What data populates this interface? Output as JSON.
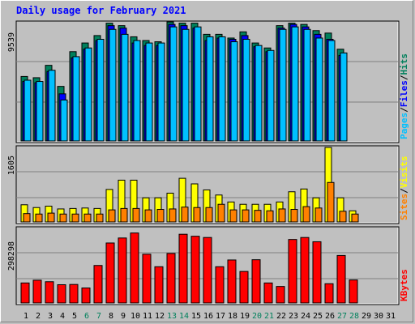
{
  "chart_data": {
    "type": "bar",
    "title": "Daily usage for February 2021",
    "days": [
      "1",
      "2",
      "3",
      "4",
      "5",
      "6",
      "7",
      "8",
      "9",
      "10",
      "11",
      "12",
      "13",
      "14",
      "15",
      "16",
      "17",
      "18",
      "19",
      "20",
      "21",
      "22",
      "23",
      "24",
      "25",
      "26",
      "27",
      "28",
      "29",
      "30",
      "31"
    ],
    "weekend_days": [
      "6",
      "7",
      "13",
      "14",
      "20",
      "21",
      "27",
      "28"
    ],
    "colors": {
      "hits": "#00805c",
      "files": "#0000ff",
      "pages": "#00c0ff",
      "visits": "#ffff00",
      "sites": "#ff8000",
      "kbytes": "#ff0000",
      "weekday_label": "#000000",
      "weekend_label": "#00805c"
    },
    "panels": [
      {
        "id": "hits-files-pages",
        "ymax_label": "9539",
        "ymax": 9539,
        "legend": [
          "Pages",
          "Files",
          "Hits"
        ],
        "legend_colors": [
          "#00c0ff",
          "#0000ff",
          "#00805c"
        ],
        "series": [
          {
            "name": "Hits",
            "values": [
              5200,
              5100,
              6100,
              4400,
              7200,
              7900,
              8500,
              9500,
              9300,
              8400,
              8100,
              8000,
              9600,
              9500,
              9500,
              8600,
              8600,
              8300,
              8800,
              7900,
              7500,
              9300,
              9500,
              9400,
              8900,
              8700,
              7400,
              null,
              null,
              null,
              null
            ]
          },
          {
            "name": "Files",
            "values": [
              4800,
              4700,
              5600,
              3800,
              6700,
              7400,
              8100,
              9300,
              9100,
              7900,
              7700,
              7700,
              9400,
              9300,
              9100,
              8100,
              8300,
              8200,
              8500,
              7600,
              7200,
              9100,
              9400,
              9200,
              8600,
              8200,
              6900,
              null,
              null,
              null,
              null
            ]
          },
          {
            "name": "Pages",
            "values": [
              4900,
              4800,
              5700,
              3300,
              6800,
              7500,
              8200,
              9000,
              8600,
              8100,
              7900,
              7900,
              9200,
              9000,
              9200,
              8400,
              8400,
              8000,
              8200,
              7700,
              7300,
              9000,
              9200,
              9000,
              8300,
              8100,
              7100,
              null,
              null,
              null,
              null
            ]
          }
        ]
      },
      {
        "id": "visits-sites",
        "ymax_label": "1605",
        "ymax": 1605,
        "legend": [
          "Sites",
          "Visits"
        ],
        "legend_colors": [
          "#ff8000",
          "#ffff00"
        ],
        "series": [
          {
            "name": "Visits",
            "values": [
              370,
              310,
              340,
              280,
              290,
              300,
              290,
              700,
              900,
              900,
              520,
              520,
              620,
              940,
              820,
              690,
              580,
              430,
              380,
              380,
              380,
              430,
              650,
              710,
              520,
              1605,
              520,
              240,
              null,
              null,
              null
            ]
          },
          {
            "name": "Sites",
            "values": [
              180,
              170,
              190,
              170,
              170,
              170,
              170,
              260,
              290,
              290,
              260,
              270,
              280,
              320,
              310,
              310,
              380,
              260,
              260,
              250,
              240,
              280,
              270,
              330,
              300,
              850,
              230,
              170,
              null,
              null,
              null
            ]
          }
        ]
      },
      {
        "id": "kbytes",
        "ymax_label": "298298",
        "ymax": 298298,
        "legend": [
          "KBytes"
        ],
        "legend_colors": [
          "#ff0000"
        ],
        "series": [
          {
            "name": "KBytes",
            "values": [
              80000,
              91000,
              85000,
              73000,
              74000,
              60000,
              150000,
              240000,
              260000,
              280000,
              195000,
              145000,
              198000,
              275000,
              267000,
              262000,
              145000,
              172000,
              126000,
              173000,
              80000,
              66000,
              254000,
              262000,
              245000,
              77000,
              190000,
              92000,
              null,
              null,
              null
            ]
          }
        ]
      }
    ]
  }
}
